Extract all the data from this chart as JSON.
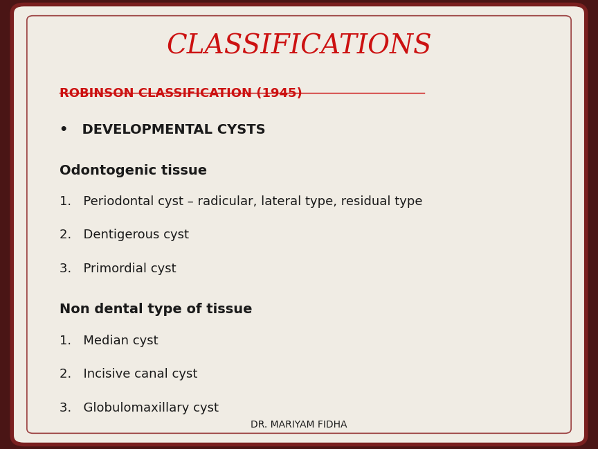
{
  "title": "CLASSIFICATIONS",
  "title_color": "#cc1111",
  "title_fontsize": 28,
  "subtitle": "ROBINSON CLASSIFICATION (1945)",
  "subtitle_color": "#cc1111",
  "subtitle_fontsize": 13,
  "bullet_line": "•   DEVELOPMENTAL CYSTS",
  "bullet_fontsize": 14,
  "section1_header": "Odontogenic tissue",
  "section1_header_fontsize": 14,
  "section1_items": [
    "1.   Periodontal cyst – radicular, lateral type, residual type",
    "2.   Dentigerous cyst",
    "3.   Primordial cyst"
  ],
  "section2_header": "Non dental type of tissue",
  "section2_header_fontsize": 14,
  "section2_items": [
    "1.   Median cyst",
    "2.   Incisive canal cyst",
    "3.   Globulomaxillary cyst"
  ],
  "item_fontsize": 13,
  "footer": "DR. MARIYAM FIDHA",
  "footer_fontsize": 10,
  "bg_outer": "#4a1515",
  "bg_inner": "#f0ece4",
  "text_color": "#1a1a1a",
  "fig_width": 8.64,
  "fig_height": 6.48
}
